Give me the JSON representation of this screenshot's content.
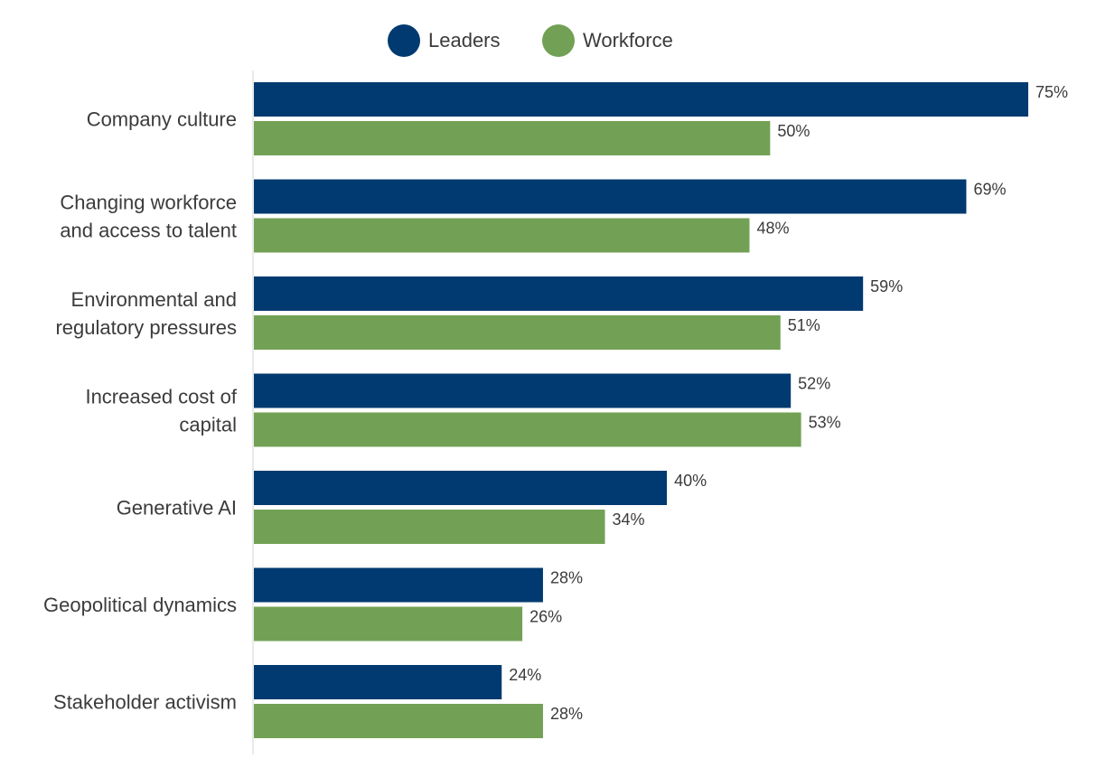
{
  "colors": {
    "leaders": "#003a70",
    "workforce": "#72a155",
    "axis": "#d6d6d6",
    "text": "#3b3b3b"
  },
  "chart_data": {
    "type": "bar",
    "orientation": "horizontal",
    "title": "",
    "xlabel": "",
    "ylabel": "",
    "xlim": [
      0,
      100
    ],
    "grid": false,
    "legend_position": "top-center",
    "value_suffix": "%",
    "categories": [
      [
        "Company culture"
      ],
      [
        "Changing workforce",
        "and access to talent"
      ],
      [
        "Environmental and",
        "regulatory pressures"
      ],
      [
        "Increased cost of",
        "capital"
      ],
      [
        "Generative AI"
      ],
      [
        "Geopolitical dynamics"
      ],
      [
        "Stakeholder activism"
      ]
    ],
    "series": [
      {
        "name": "Leaders",
        "values": [
          75,
          69,
          59,
          52,
          40,
          28,
          24
        ]
      },
      {
        "name": "Workforce",
        "values": [
          50,
          48,
          51,
          53,
          34,
          26,
          28
        ]
      }
    ]
  }
}
